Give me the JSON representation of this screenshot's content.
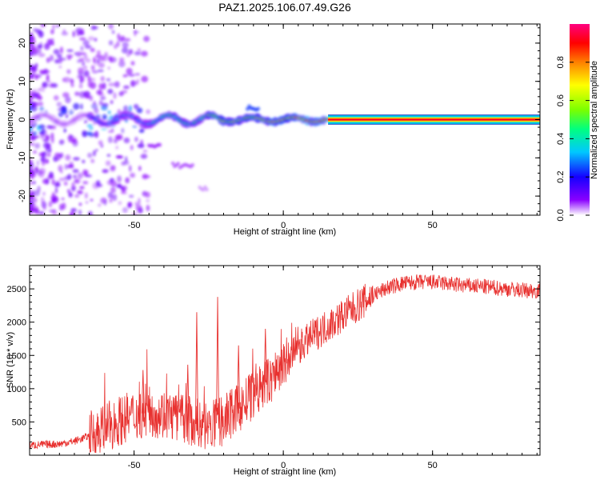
{
  "title": "PAZ1.2025.106.07.49.G26",
  "chart_data": [
    {
      "type": "heatmap",
      "xlabel": "Height of straight line (km)",
      "ylabel": "Frequency (Hz)",
      "xlim": [
        -85,
        86
      ],
      "ylim": [
        -25,
        25
      ],
      "xticks": [
        -50,
        0,
        50
      ],
      "yticks": [
        -20,
        -10,
        0,
        10,
        20
      ],
      "colorbar": {
        "label": "Normalized spectral amplitude",
        "range": [
          0,
          1
        ],
        "ticks": [
          0.0,
          0.2,
          0.4,
          0.6,
          0.8
        ],
        "colormap": [
          "#ffffff",
          "#8a00ff",
          "#1500ff",
          "#00c8ff",
          "#00ff80",
          "#7aff00",
          "#ffff00",
          "#ff8000",
          "#ff0000",
          "#ff0080"
        ]
      },
      "main_line": {
        "frequency": 0,
        "segments": [
          {
            "x": [
              -85,
              -65
            ],
            "amplitude": 0.12
          },
          {
            "x": [
              -65,
              -45
            ],
            "amplitude": 0.3
          },
          {
            "x": [
              -45,
              -25
            ],
            "amplitude": 0.45
          },
          {
            "x": [
              -25,
              -5
            ],
            "amplitude": 0.6
          },
          {
            "x": [
              -5,
              15
            ],
            "amplitude": 0.82
          },
          {
            "x": [
              15,
              86
            ],
            "amplitude": 0.95
          }
        ]
      },
      "secondary_features": [
        {
          "x": [
            -45,
            -41
          ],
          "frequency": -7,
          "amplitude": 0.1
        },
        {
          "x": [
            -37,
            -30
          ],
          "frequency": -12,
          "amplitude": 0.08
        },
        {
          "x": [
            -28,
            -25
          ],
          "frequency": -18,
          "amplitude": 0.05
        },
        {
          "x": [
            -12,
            -8
          ],
          "frequency": 3,
          "amplitude": 0.25
        }
      ]
    },
    {
      "type": "line",
      "xlabel": "Height of straight line (km)",
      "ylabel": "SNR (10 * v/v)",
      "xlim": [
        -85,
        86
      ],
      "ylim": [
        0,
        2850
      ],
      "xticks": [
        -50,
        0,
        50
      ],
      "yticks": [
        500,
        1000,
        1500,
        2000,
        2500
      ],
      "color": "#e8312f",
      "x": [
        -85,
        -80,
        -75,
        -70,
        -65,
        -60,
        -55,
        -50,
        -45,
        -40,
        -35,
        -30,
        -25,
        -20,
        -15,
        -10,
        -5,
        0,
        5,
        10,
        15,
        20,
        25,
        30,
        35,
        40,
        45,
        50,
        55,
        60,
        65,
        70,
        75,
        80,
        86
      ],
      "y": [
        150,
        160,
        170,
        210,
        290,
        400,
        520,
        600,
        650,
        620,
        560,
        500,
        420,
        520,
        700,
        900,
        1100,
        1350,
        1600,
        1800,
        1950,
        2100,
        2250,
        2400,
        2520,
        2580,
        2600,
        2600,
        2580,
        2550,
        2540,
        2520,
        2500,
        2480,
        2470
      ],
      "spikes": [
        {
          "x": -22,
          "y": 2380
        },
        {
          "x": -29,
          "y": 2150
        },
        {
          "x": -47,
          "y": 1280
        },
        {
          "x": -32,
          "y": 1360
        },
        {
          "x": -15,
          "y": 1650
        },
        {
          "x": -6,
          "y": 1900
        }
      ]
    }
  ]
}
